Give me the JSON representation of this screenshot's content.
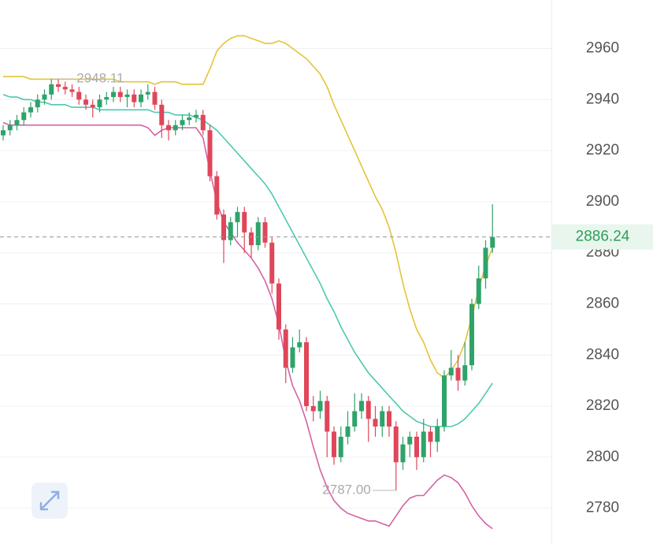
{
  "chart_data": {
    "type": "candlestick",
    "ylim": [
      2766,
      2979
    ],
    "yticks": [
      2780,
      2800,
      2820,
      2840,
      2860,
      2880,
      2900,
      2920,
      2940,
      2960
    ],
    "grid": true,
    "up_color": "#2ea36a",
    "down_color": "#e0465a",
    "open": [
      2926,
      2928,
      2930,
      2932,
      2935,
      2937,
      2940,
      2942,
      2946,
      2945,
      2944,
      2943,
      2940,
      2938,
      2937,
      2940,
      2941,
      2943,
      2941,
      2942,
      2939,
      2942,
      2943,
      2938,
      2930,
      2928,
      2930,
      2932,
      2933,
      2934,
      2928,
      2910,
      2895,
      2885,
      2892,
      2896,
      2888,
      2883,
      2892,
      2884,
      2868,
      2850,
      2835,
      2843,
      2845,
      2820,
      2818,
      2822,
      2810,
      2800,
      2808,
      2812,
      2818,
      2822,
      2815,
      2812,
      2818,
      2812,
      2798,
      2805,
      2808,
      2800,
      2810,
      2806,
      2812,
      2832,
      2835,
      2830,
      2836,
      2860,
      2870,
      2882
    ],
    "high": [
      2930,
      2932,
      2934,
      2937,
      2939,
      2942,
      2944,
      2948.11,
      2948,
      2947,
      2946,
      2945,
      2942,
      2940,
      2942,
      2943,
      2945,
      2945,
      2944,
      2944,
      2944,
      2946,
      2945,
      2940,
      2932,
      2932,
      2934,
      2935,
      2936,
      2936,
      2930,
      2912,
      2897,
      2894,
      2898,
      2898,
      2890,
      2894,
      2894,
      2886,
      2870,
      2852,
      2847,
      2850,
      2847,
      2824,
      2826,
      2824,
      2812,
      2812,
      2818,
      2825,
      2825,
      2824,
      2820,
      2820,
      2820,
      2814,
      2808,
      2810,
      2810,
      2815,
      2812,
      2815,
      2834,
      2842,
      2840,
      2845,
      2862,
      2875,
      2885,
      2899
    ],
    "low": [
      2924,
      2926,
      2928,
      2930,
      2933,
      2935,
      2938,
      2940,
      2943,
      2942,
      2941,
      2938,
      2936,
      2933,
      2935,
      2938,
      2939,
      2939,
      2937,
      2937,
      2937,
      2940,
      2936,
      2925,
      2924,
      2926,
      2928,
      2930,
      2931,
      2926,
      2908,
      2893,
      2876,
      2883,
      2886,
      2880,
      2878,
      2881,
      2882,
      2864,
      2846,
      2829,
      2833,
      2841,
      2818,
      2814,
      2815,
      2800,
      2797,
      2798,
      2805,
      2810,
      2815,
      2806,
      2808,
      2808,
      2808,
      2787,
      2795,
      2800,
      2795,
      2798,
      2800,
      2802,
      2810,
      2830,
      2826,
      2828,
      2834,
      2858,
      2866,
      2880
    ],
    "close": [
      2928,
      2930,
      2932,
      2935,
      2937,
      2940,
      2942,
      2946,
      2945,
      2944,
      2943,
      2940,
      2938,
      2937,
      2940,
      2941,
      2943,
      2941,
      2942,
      2939,
      2942,
      2943,
      2938,
      2930,
      2928,
      2930,
      2932,
      2933,
      2934,
      2928,
      2910,
      2895,
      2885,
      2892,
      2896,
      2888,
      2883,
      2892,
      2884,
      2868,
      2850,
      2835,
      2843,
      2845,
      2820,
      2818,
      2822,
      2810,
      2800,
      2808,
      2812,
      2818,
      2822,
      2815,
      2812,
      2818,
      2812,
      2798,
      2805,
      2808,
      2800,
      2810,
      2806,
      2812,
      2832,
      2835,
      2830,
      2836,
      2860,
      2870,
      2882,
      2886.24
    ],
    "series": [
      {
        "color": "#e3c43a",
        "values": [
          2949,
          2949,
          2949,
          2949,
          2948,
          2948,
          2948,
          2948,
          2948,
          2948,
          2948,
          2948,
          2948,
          2948,
          2948,
          2948,
          2948,
          2947,
          2947,
          2947,
          2947,
          2947,
          2946,
          2947,
          2947,
          2947,
          2946,
          2946,
          2946,
          2946,
          2952,
          2959,
          2962,
          2964,
          2965,
          2965,
          2964,
          2963,
          2962,
          2962,
          2963,
          2962,
          2960,
          2958,
          2956,
          2953,
          2950,
          2945,
          2938,
          2932,
          2926,
          2920,
          2914,
          2908,
          2902,
          2897,
          2890,
          2880,
          2868,
          2858,
          2850,
          2845,
          2838,
          2833,
          2831,
          2834,
          2838,
          2845,
          2855,
          2866,
          2875,
          2882
        ]
      },
      {
        "color": "#4cc9b0",
        "values": [
          2942,
          2941,
          2941,
          2940,
          2940,
          2939,
          2939,
          2938,
          2938,
          2938,
          2937,
          2937,
          2937,
          2937,
          2936,
          2936,
          2936,
          2936,
          2936,
          2936,
          2936,
          2936,
          2935,
          2935,
          2935,
          2934,
          2934,
          2934,
          2933,
          2932,
          2930,
          2928,
          2925,
          2922,
          2919,
          2916,
          2913,
          2910,
          2907,
          2903,
          2898,
          2893,
          2888,
          2883,
          2878,
          2873,
          2868,
          2862,
          2857,
          2851,
          2846,
          2841,
          2837,
          2833,
          2830,
          2827,
          2824,
          2821,
          2818,
          2816,
          2814,
          2813,
          2812,
          2812,
          2812,
          2812,
          2813,
          2815,
          2818,
          2821,
          2825,
          2829
        ]
      },
      {
        "color": "#d462a5",
        "values": [
          2931,
          2930,
          2930,
          2930,
          2930,
          2930,
          2930,
          2930,
          2930,
          2930,
          2930,
          2930,
          2930,
          2930,
          2930,
          2930,
          2930,
          2930,
          2930,
          2930,
          2930,
          2929,
          2926,
          2928,
          2929,
          2929,
          2929,
          2929,
          2929,
          2925,
          2912,
          2900,
          2892,
          2888,
          2884,
          2881,
          2878,
          2874,
          2869,
          2862,
          2852,
          2838,
          2828,
          2822,
          2814,
          2804,
          2795,
          2788,
          2783,
          2780,
          2778,
          2777,
          2776,
          2775,
          2775,
          2774,
          2773,
          2777,
          2781,
          2784,
          2785,
          2785,
          2788,
          2791,
          2793,
          2792,
          2790,
          2786,
          2781,
          2777,
          2774,
          2772
        ]
      }
    ],
    "annotations": [
      {
        "index": 7,
        "value": 2948.11,
        "label": "2948.11",
        "side": "right"
      },
      {
        "index": 57,
        "value": 2787,
        "label": "2787.00",
        "side": "left"
      }
    ],
    "last_price": 2886.24
  }
}
